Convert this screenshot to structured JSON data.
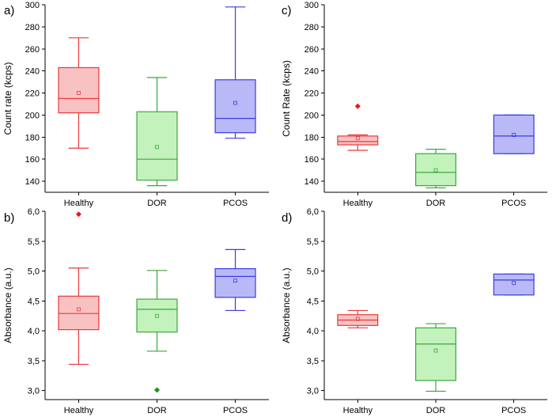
{
  "colors": {
    "Healthy": {
      "stroke": "#e8393c",
      "fill": "#f9c2c2",
      "outlier": "#e21a1a"
    },
    "DOR": {
      "stroke": "#3aa93a",
      "fill": "#c3f2bd",
      "outlier": "#1f8f1f"
    },
    "PCOS": {
      "stroke": "#3b3be0",
      "fill": "#b9b9f7",
      "outlier": "#2a2ad0"
    }
  },
  "chart_data": [
    {
      "type": "box",
      "panel": "a)",
      "ylabel": "Count rate (kcps)",
      "ylim": [
        130,
        300
      ],
      "yticks": [
        "140",
        "160",
        "180",
        "200",
        "220",
        "240",
        "260",
        "280",
        "300"
      ],
      "ytick_values": [
        140,
        160,
        180,
        200,
        220,
        240,
        260,
        280,
        300
      ],
      "categories": [
        "Healthy",
        "DOR",
        "PCOS"
      ],
      "boxes": [
        {
          "category": "Healthy",
          "whisker_low": 170,
          "q1": 202,
          "median": 215,
          "q3": 243,
          "whisker_high": 270,
          "mean": 220,
          "outliers": []
        },
        {
          "category": "DOR",
          "whisker_low": 136,
          "q1": 141,
          "median": 160,
          "q3": 203,
          "whisker_high": 234,
          "mean": 171,
          "outliers": []
        },
        {
          "category": "PCOS",
          "whisker_low": 179,
          "q1": 184,
          "median": 197,
          "q3": 232,
          "whisker_high": 298,
          "mean": 211,
          "outliers": []
        }
      ]
    },
    {
      "type": "box",
      "panel": "b)",
      "ylabel": "Absorbance (a.u.)",
      "ylim": [
        2.85,
        6.0
      ],
      "yticks": [
        "3,0",
        "3,5",
        "4,0",
        "4,5",
        "5,0",
        "5,5",
        "6,0"
      ],
      "ytick_values": [
        3.0,
        3.5,
        4.0,
        4.5,
        5.0,
        5.5,
        6.0
      ],
      "categories": [
        "Healthy",
        "DOR",
        "PCOS"
      ],
      "boxes": [
        {
          "category": "Healthy",
          "whisker_low": 3.44,
          "q1": 4.02,
          "median": 4.29,
          "q3": 4.58,
          "whisker_high": 5.05,
          "mean": 4.36,
          "outliers": [
            5.95
          ]
        },
        {
          "category": "DOR",
          "whisker_low": 3.66,
          "q1": 3.98,
          "median": 4.36,
          "q3": 4.53,
          "whisker_high": 5.01,
          "mean": 4.25,
          "outliers": [
            3.01
          ]
        },
        {
          "category": "PCOS",
          "whisker_low": 4.34,
          "q1": 4.56,
          "median": 4.91,
          "q3": 5.04,
          "whisker_high": 5.36,
          "mean": 4.84,
          "outliers": []
        }
      ]
    },
    {
      "type": "box",
      "panel": "c)",
      "ylabel": "Count Rate (kcps)",
      "ylim": [
        130,
        300
      ],
      "yticks": [
        "140",
        "160",
        "180",
        "200",
        "220",
        "240",
        "260",
        "280",
        "300"
      ],
      "ytick_values": [
        140,
        160,
        180,
        200,
        220,
        240,
        260,
        280,
        300
      ],
      "categories": [
        "Healthy",
        "DOR",
        "PCOS"
      ],
      "boxes": [
        {
          "category": "Healthy",
          "whisker_low": 168,
          "q1": 173,
          "median": 176,
          "q3": 181,
          "whisker_high": 182,
          "mean": 179,
          "outliers": [
            208
          ]
        },
        {
          "category": "DOR",
          "whisker_low": 134,
          "q1": 136,
          "median": 148,
          "q3": 165,
          "whisker_high": 169,
          "mean": 150,
          "outliers": []
        },
        {
          "category": "PCOS",
          "whisker_low": 165,
          "q1": 165,
          "median": 181,
          "q3": 200,
          "whisker_high": 200,
          "mean": 182,
          "outliers": []
        }
      ]
    },
    {
      "type": "box",
      "panel": "d)",
      "ylabel": "Absorbance (a.u.)",
      "ylim": [
        2.85,
        6.0
      ],
      "yticks": [
        "3,0",
        "3,5",
        "4,0",
        "4,5",
        "5,0",
        "5,5",
        "6,0"
      ],
      "ytick_values": [
        3.0,
        3.5,
        4.0,
        4.5,
        5.0,
        5.5,
        6.0
      ],
      "categories": [
        "Healthy",
        "DOR",
        "PCOS"
      ],
      "boxes": [
        {
          "category": "Healthy",
          "whisker_low": 4.05,
          "q1": 4.09,
          "median": 4.18,
          "q3": 4.27,
          "whisker_high": 4.34,
          "mean": 4.2,
          "outliers": []
        },
        {
          "category": "DOR",
          "whisker_low": 2.99,
          "q1": 3.17,
          "median": 3.78,
          "q3": 4.05,
          "whisker_high": 4.12,
          "mean": 3.67,
          "outliers": []
        },
        {
          "category": "PCOS",
          "whisker_low": 4.6,
          "q1": 4.6,
          "median": 4.85,
          "q3": 4.95,
          "whisker_high": 4.95,
          "mean": 4.8,
          "outliers": []
        }
      ]
    }
  ]
}
